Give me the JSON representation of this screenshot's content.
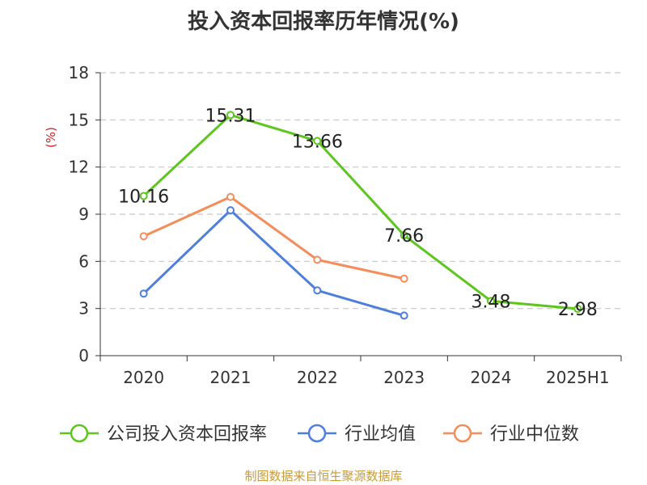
{
  "title": "投入资本回报率历年情况(%)",
  "source": "制图数据来自恒生聚源数据库",
  "chart_data": {
    "type": "line",
    "title": "投入资本回报率历年情况(%)",
    "ylabel": "(%)",
    "xlabel": "",
    "categories": [
      "2020",
      "2021",
      "2022",
      "2023",
      "2024",
      "2025H1"
    ],
    "ylim": [
      0,
      18
    ],
    "yticks": [
      0,
      3,
      6,
      9,
      12,
      15,
      18
    ],
    "grid": true,
    "legend_position": "bottom",
    "series": [
      {
        "name": "公司投入资本回报率",
        "color": "#5cc51e",
        "values": [
          10.16,
          15.31,
          13.66,
          7.66,
          3.48,
          2.98
        ],
        "labels": [
          "10.16",
          "15.31",
          "13.66",
          "7.66",
          "3.48",
          "2.98"
        ]
      },
      {
        "name": "行业均值",
        "color": "#4d7fdb",
        "values": [
          3.95,
          9.25,
          4.15,
          2.55,
          null,
          null
        ]
      },
      {
        "name": "行业中位数",
        "color": "#f58d5a",
        "values": [
          7.6,
          10.1,
          6.1,
          4.9,
          null,
          null
        ]
      }
    ]
  }
}
